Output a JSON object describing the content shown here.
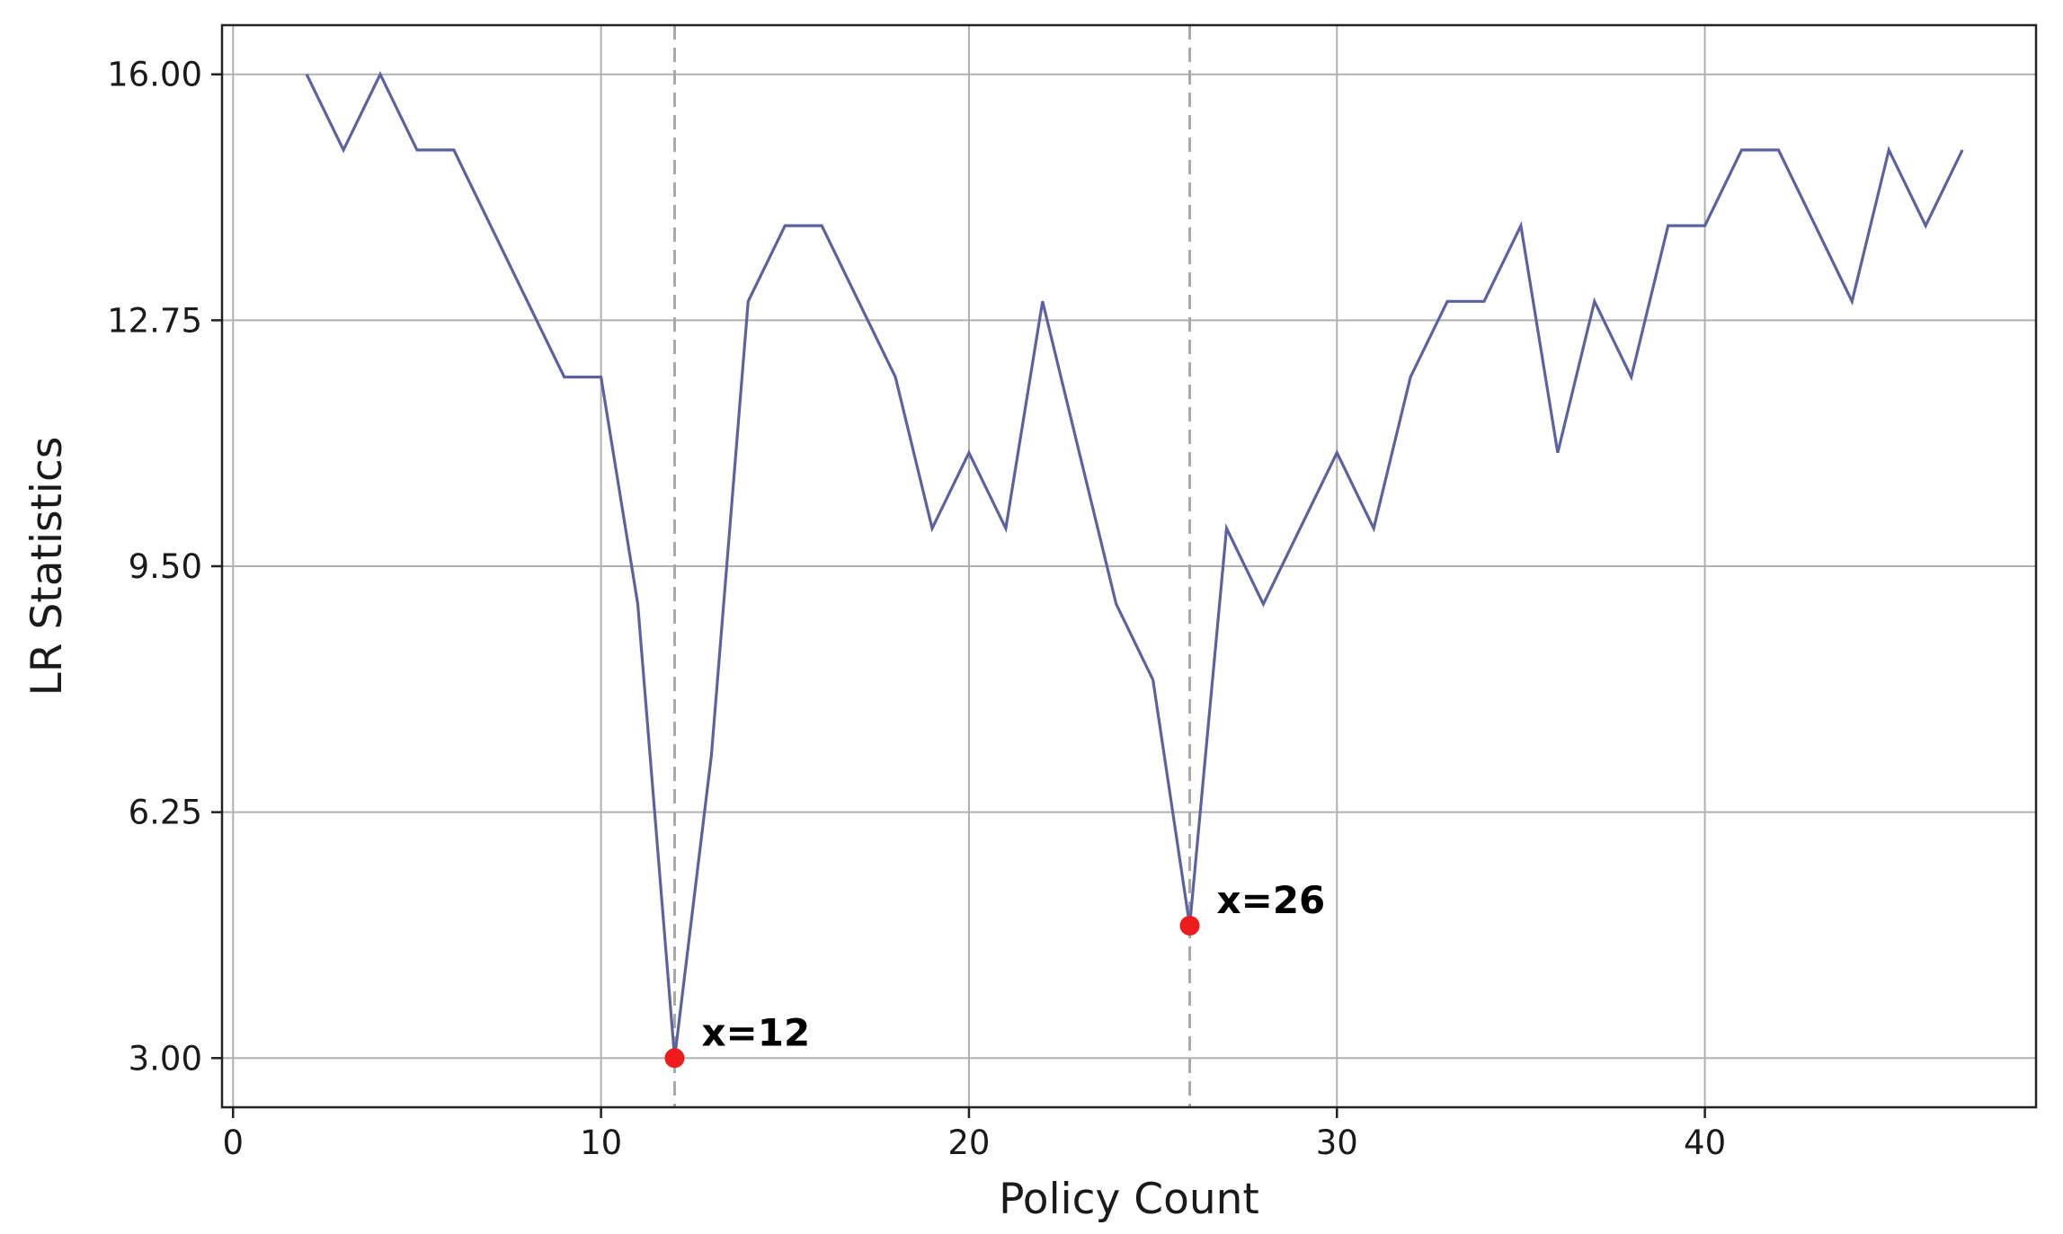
{
  "chart_data": {
    "type": "line",
    "title": "",
    "xlabel": "Policy Count",
    "ylabel": "LR Statistics",
    "xlim": [
      -0.3,
      49
    ],
    "ylim": [
      2.35,
      16.65
    ],
    "xticks": [
      0,
      10,
      20,
      30,
      40
    ],
    "yticks": [
      3.0,
      6.25,
      9.5,
      12.75,
      16.0
    ],
    "ytick_labels": [
      "3.00",
      "6.25",
      "9.50",
      "12.75",
      "16.00"
    ],
    "grid": true,
    "line_color": "#5a62a0",
    "marker_color": "#ee1c1c",
    "guide_color": "#a8a8a8",
    "series": [
      {
        "x": [
          2,
          3,
          4,
          5,
          6,
          7,
          8,
          9,
          10,
          11,
          12,
          13,
          14,
          15,
          16,
          17,
          18,
          19,
          20,
          21,
          22,
          23,
          24,
          25,
          26,
          27,
          28,
          29,
          30,
          31,
          32,
          33,
          34,
          35,
          36,
          37,
          38,
          39,
          40,
          41,
          42,
          43,
          44,
          45,
          46,
          47
        ],
        "y": [
          16.0,
          15.0,
          16.0,
          15.0,
          15.0,
          14.0,
          13.0,
          12.0,
          12.0,
          9.0,
          3.0,
          7.0,
          13.0,
          14.0,
          14.0,
          13.0,
          12.0,
          10.0,
          11.0,
          10.0,
          13.0,
          11.0,
          9.0,
          8.0,
          4.75,
          10.0,
          9.0,
          10.0,
          11.0,
          10.0,
          12.0,
          13.0,
          13.0,
          14.0,
          11.0,
          13.0,
          12.0,
          14.0,
          14.0,
          15.0,
          15.0,
          14.0,
          13.0,
          15.0,
          14.0,
          15.0
        ]
      }
    ],
    "annotations": [
      {
        "x": 12,
        "y": 3.0,
        "label": "x=12"
      },
      {
        "x": 26,
        "y": 4.75,
        "label": "x=26"
      }
    ]
  }
}
